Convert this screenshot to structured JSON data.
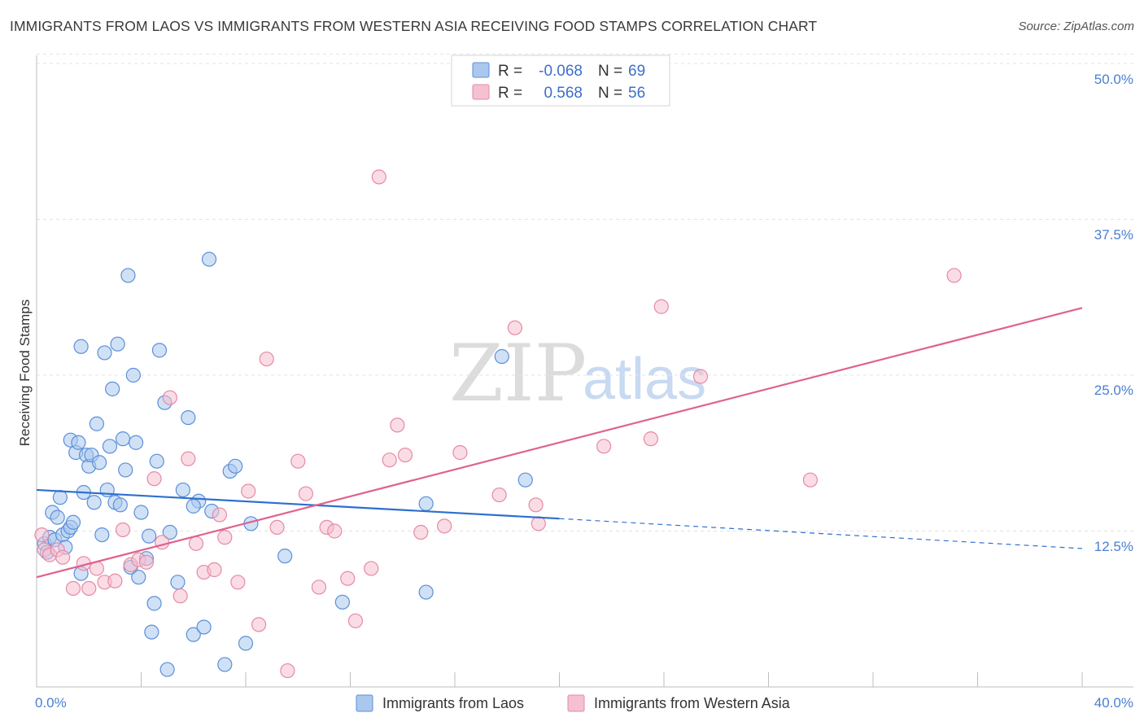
{
  "title": "IMMIGRANTS FROM LAOS VS IMMIGRANTS FROM WESTERN ASIA RECEIVING FOOD STAMPS CORRELATION CHART",
  "source": "Source: ZipAtlas.com",
  "watermark": {
    "zip": "ZIP",
    "atlas": "atlas"
  },
  "colors": {
    "blue_fill": "#aac8ee",
    "blue_stroke": "#5b8fd8",
    "blue_line": "#2e6fce",
    "pink_fill": "#f5c0d0",
    "pink_stroke": "#e58aa6",
    "pink_line": "#e0628e",
    "tick_text": "#4a7fd0",
    "grid": "#e3e3e3"
  },
  "legend_top": [
    {
      "r_label": "R =",
      "r_value": "-0.068",
      "n_label": "N =",
      "n_value": "69"
    },
    {
      "r_label": "R =",
      "r_value": "0.568",
      "n_label": "N =",
      "n_value": "56"
    }
  ],
  "chart_data": {
    "type": "scatter",
    "title": "IMMIGRANTS FROM LAOS VS IMMIGRANTS FROM WESTERN ASIA RECEIVING FOOD STAMPS CORRELATION CHART",
    "xlabel": "",
    "ylabel": "Receiving Food Stamps",
    "xlim": [
      0,
      40
    ],
    "ylim": [
      0,
      50
    ],
    "x_tick_labels": [
      "0.0%",
      "40.0%"
    ],
    "y_ticks": [
      12.5,
      25.0,
      37.5,
      50.0
    ],
    "y_tick_labels": [
      "12.5%",
      "25.0%",
      "37.5%",
      "50.0%"
    ],
    "grid": true,
    "series": [
      {
        "name": "Immigrants from Laos",
        "color": "blue",
        "r": -0.068,
        "n": 69,
        "trend": {
          "x0": 0.0,
          "y0": 15.8,
          "x1": 20.0,
          "y1": 13.5,
          "dash_to_x": 40.0,
          "dash_to_y": 11.1
        },
        "points": [
          [
            0.3,
            11.5
          ],
          [
            0.4,
            10.8
          ],
          [
            0.5,
            12.0
          ],
          [
            0.6,
            14.0
          ],
          [
            0.7,
            11.8
          ],
          [
            0.8,
            13.6
          ],
          [
            0.9,
            15.2
          ],
          [
            1.0,
            12.2
          ],
          [
            1.1,
            11.2
          ],
          [
            1.2,
            12.5
          ],
          [
            1.3,
            12.8
          ],
          [
            1.4,
            13.2
          ],
          [
            1.3,
            19.8
          ],
          [
            1.5,
            18.8
          ],
          [
            1.6,
            19.6
          ],
          [
            1.7,
            9.1
          ],
          [
            1.7,
            27.3
          ],
          [
            1.8,
            15.6
          ],
          [
            1.9,
            18.6
          ],
          [
            2.0,
            17.7
          ],
          [
            2.1,
            18.6
          ],
          [
            2.2,
            14.8
          ],
          [
            2.3,
            21.1
          ],
          [
            2.4,
            18.0
          ],
          [
            2.5,
            12.2
          ],
          [
            2.6,
            26.8
          ],
          [
            2.7,
            15.8
          ],
          [
            2.8,
            19.3
          ],
          [
            2.9,
            23.9
          ],
          [
            3.0,
            14.8
          ],
          [
            3.1,
            27.5
          ],
          [
            3.2,
            14.6
          ],
          [
            3.3,
            19.9
          ],
          [
            3.4,
            17.4
          ],
          [
            3.5,
            33.0
          ],
          [
            3.6,
            9.6
          ],
          [
            3.7,
            25.0
          ],
          [
            3.8,
            19.6
          ],
          [
            3.9,
            8.8
          ],
          [
            4.0,
            14.0
          ],
          [
            4.2,
            10.3
          ],
          [
            4.3,
            12.1
          ],
          [
            4.4,
            4.4
          ],
          [
            4.5,
            6.7
          ],
          [
            4.7,
            27.0
          ],
          [
            4.6,
            18.1
          ],
          [
            4.9,
            22.8
          ],
          [
            5.0,
            1.4
          ],
          [
            5.1,
            12.4
          ],
          [
            5.4,
            8.4
          ],
          [
            5.6,
            15.8
          ],
          [
            5.8,
            21.6
          ],
          [
            6.0,
            4.2
          ],
          [
            6.2,
            14.9
          ],
          [
            6.4,
            4.8
          ],
          [
            6.6,
            34.3
          ],
          [
            6.7,
            14.1
          ],
          [
            7.2,
            1.8
          ],
          [
            7.4,
            17.3
          ],
          [
            7.6,
            17.7
          ],
          [
            8.0,
            3.5
          ],
          [
            8.2,
            13.1
          ],
          [
            9.5,
            10.5
          ],
          [
            11.7,
            6.8
          ],
          [
            14.9,
            14.7
          ],
          [
            17.8,
            26.5
          ],
          [
            18.7,
            16.6
          ],
          [
            14.9,
            7.6
          ],
          [
            6.0,
            14.5
          ]
        ]
      },
      {
        "name": "Immigrants from Western Asia",
        "color": "pink",
        "r": 0.568,
        "n": 56,
        "trend": {
          "x0": 0.0,
          "y0": 8.8,
          "x1": 40.0,
          "y1": 30.4
        },
        "points": [
          [
            0.2,
            12.2
          ],
          [
            0.3,
            11.0
          ],
          [
            0.5,
            10.6
          ],
          [
            0.8,
            11.0
          ],
          [
            1.0,
            10.4
          ],
          [
            1.4,
            7.9
          ],
          [
            1.8,
            9.9
          ],
          [
            2.0,
            7.9
          ],
          [
            2.3,
            9.5
          ],
          [
            2.6,
            8.4
          ],
          [
            3.0,
            8.5
          ],
          [
            3.3,
            12.6
          ],
          [
            3.6,
            9.8
          ],
          [
            3.9,
            10.2
          ],
          [
            4.2,
            10.0
          ],
          [
            4.5,
            16.7
          ],
          [
            4.8,
            11.6
          ],
          [
            5.1,
            23.2
          ],
          [
            5.5,
            7.3
          ],
          [
            5.8,
            18.3
          ],
          [
            6.1,
            11.5
          ],
          [
            6.4,
            9.2
          ],
          [
            6.8,
            9.4
          ],
          [
            7.0,
            13.8
          ],
          [
            7.2,
            12.0
          ],
          [
            7.7,
            8.4
          ],
          [
            8.1,
            15.7
          ],
          [
            8.5,
            5.0
          ],
          [
            8.8,
            26.3
          ],
          [
            9.2,
            12.8
          ],
          [
            9.6,
            1.3
          ],
          [
            10.0,
            18.1
          ],
          [
            10.3,
            15.5
          ],
          [
            10.8,
            8.0
          ],
          [
            11.1,
            12.8
          ],
          [
            11.4,
            12.5
          ],
          [
            11.9,
            8.7
          ],
          [
            12.2,
            5.3
          ],
          [
            12.8,
            9.5
          ],
          [
            13.1,
            40.9
          ],
          [
            13.5,
            18.2
          ],
          [
            13.8,
            21.0
          ],
          [
            14.1,
            18.6
          ],
          [
            14.7,
            12.4
          ],
          [
            15.6,
            12.9
          ],
          [
            16.2,
            18.8
          ],
          [
            17.7,
            15.4
          ],
          [
            18.3,
            28.8
          ],
          [
            19.2,
            13.1
          ],
          [
            19.1,
            14.6
          ],
          [
            21.7,
            19.3
          ],
          [
            23.5,
            19.9
          ],
          [
            23.9,
            30.5
          ],
          [
            25.4,
            24.9
          ],
          [
            29.6,
            16.6
          ],
          [
            35.1,
            33.0
          ]
        ]
      }
    ]
  },
  "legend_bottom": [
    {
      "label": "Immigrants from Laos"
    },
    {
      "label": "Immigrants from Western Asia"
    }
  ]
}
